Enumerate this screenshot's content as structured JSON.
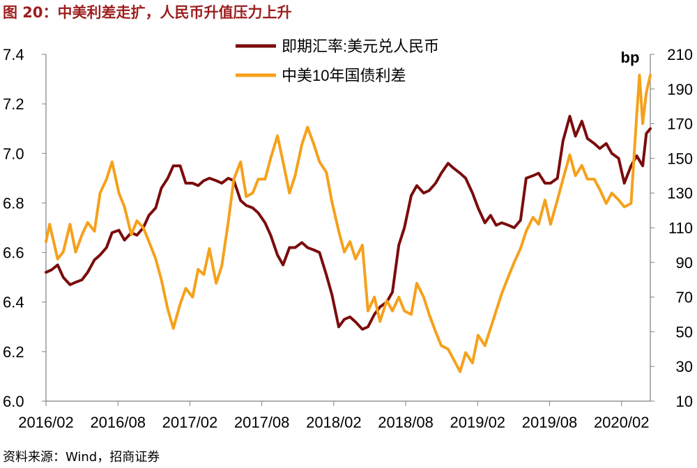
{
  "figure": {
    "title": "图 20：中美利差走扩，人民币升值压力上升",
    "source": "资料来源：Wind，招商证券"
  },
  "chart_data": {
    "type": "line",
    "x_ticks": [
      "2016/02",
      "2016/08",
      "2017/02",
      "2017/08",
      "2018/02",
      "2018/08",
      "2019/02",
      "2019/08",
      "2020/02"
    ],
    "x_range": [
      "2016-02-01",
      "2020-03-20"
    ],
    "y_left": {
      "min": 6.0,
      "max": 7.4,
      "ticks": [
        "6.0",
        "6.2",
        "6.4",
        "6.6",
        "6.8",
        "7.0",
        "7.2",
        "7.4"
      ]
    },
    "y_right": {
      "min": 10,
      "max": 210,
      "unit": "bp",
      "ticks": [
        "10",
        "30",
        "50",
        "70",
        "90",
        "110",
        "130",
        "150",
        "170",
        "190",
        "210"
      ]
    },
    "legend_position": "top-center",
    "grid": false,
    "series": [
      {
        "name": "即期汇率:美元兑人民币",
        "axis": "left",
        "color": "#7b0c0c",
        "points": [
          [
            "2016-02-01",
            6.52
          ],
          [
            "2016-02-15",
            6.53
          ],
          [
            "2016-03-01",
            6.55
          ],
          [
            "2016-03-15",
            6.5
          ],
          [
            "2016-04-01",
            6.47
          ],
          [
            "2016-04-15",
            6.48
          ],
          [
            "2016-05-01",
            6.49
          ],
          [
            "2016-05-15",
            6.52
          ],
          [
            "2016-06-01",
            6.57
          ],
          [
            "2016-06-15",
            6.59
          ],
          [
            "2016-07-01",
            6.62
          ],
          [
            "2016-07-15",
            6.68
          ],
          [
            "2016-08-01",
            6.69
          ],
          [
            "2016-08-15",
            6.65
          ],
          [
            "2016-09-01",
            6.68
          ],
          [
            "2016-09-15",
            6.67
          ],
          [
            "2016-10-01",
            6.7
          ],
          [
            "2016-10-15",
            6.75
          ],
          [
            "2016-11-01",
            6.78
          ],
          [
            "2016-11-15",
            6.86
          ],
          [
            "2016-12-01",
            6.9
          ],
          [
            "2016-12-15",
            6.95
          ],
          [
            "2017-01-01",
            6.95
          ],
          [
            "2017-01-15",
            6.88
          ],
          [
            "2017-02-01",
            6.88
          ],
          [
            "2017-02-15",
            6.87
          ],
          [
            "2017-03-01",
            6.89
          ],
          [
            "2017-03-15",
            6.9
          ],
          [
            "2017-04-01",
            6.89
          ],
          [
            "2017-04-15",
            6.88
          ],
          [
            "2017-05-01",
            6.9
          ],
          [
            "2017-05-15",
            6.89
          ],
          [
            "2017-06-01",
            6.81
          ],
          [
            "2017-06-15",
            6.79
          ],
          [
            "2017-07-01",
            6.78
          ],
          [
            "2017-07-15",
            6.76
          ],
          [
            "2017-08-01",
            6.72
          ],
          [
            "2017-08-15",
            6.67
          ],
          [
            "2017-09-01",
            6.59
          ],
          [
            "2017-09-15",
            6.55
          ],
          [
            "2017-10-01",
            6.62
          ],
          [
            "2017-10-15",
            6.62
          ],
          [
            "2017-11-01",
            6.64
          ],
          [
            "2017-11-15",
            6.62
          ],
          [
            "2017-12-01",
            6.61
          ],
          [
            "2017-12-15",
            6.6
          ],
          [
            "2018-01-01",
            6.51
          ],
          [
            "2018-01-15",
            6.43
          ],
          [
            "2018-02-01",
            6.3
          ],
          [
            "2018-02-15",
            6.33
          ],
          [
            "2018-03-01",
            6.34
          ],
          [
            "2018-03-15",
            6.32
          ],
          [
            "2018-04-01",
            6.29
          ],
          [
            "2018-04-15",
            6.3
          ],
          [
            "2018-05-01",
            6.35
          ],
          [
            "2018-05-15",
            6.38
          ],
          [
            "2018-06-01",
            6.4
          ],
          [
            "2018-06-15",
            6.44
          ],
          [
            "2018-07-01",
            6.63
          ],
          [
            "2018-07-15",
            6.7
          ],
          [
            "2018-08-01",
            6.83
          ],
          [
            "2018-08-15",
            6.87
          ],
          [
            "2018-09-01",
            6.84
          ],
          [
            "2018-09-15",
            6.85
          ],
          [
            "2018-10-01",
            6.88
          ],
          [
            "2018-10-15",
            6.92
          ],
          [
            "2018-11-01",
            6.96
          ],
          [
            "2018-11-15",
            6.94
          ],
          [
            "2018-12-01",
            6.92
          ],
          [
            "2018-12-15",
            6.9
          ],
          [
            "2019-01-01",
            6.84
          ],
          [
            "2019-01-15",
            6.78
          ],
          [
            "2019-02-01",
            6.72
          ],
          [
            "2019-02-15",
            6.75
          ],
          [
            "2019-03-01",
            6.71
          ],
          [
            "2019-03-15",
            6.72
          ],
          [
            "2019-04-01",
            6.71
          ],
          [
            "2019-04-15",
            6.7
          ],
          [
            "2019-05-01",
            6.73
          ],
          [
            "2019-05-15",
            6.9
          ],
          [
            "2019-06-01",
            6.91
          ],
          [
            "2019-06-15",
            6.92
          ],
          [
            "2019-07-01",
            6.88
          ],
          [
            "2019-07-15",
            6.88
          ],
          [
            "2019-08-01",
            6.9
          ],
          [
            "2019-08-15",
            7.05
          ],
          [
            "2019-09-01",
            7.15
          ],
          [
            "2019-09-15",
            7.07
          ],
          [
            "2019-10-01",
            7.13
          ],
          [
            "2019-10-15",
            7.06
          ],
          [
            "2019-11-01",
            7.04
          ],
          [
            "2019-11-15",
            7.02
          ],
          [
            "2019-12-01",
            7.04
          ],
          [
            "2019-12-15",
            7.0
          ],
          [
            "2020-01-01",
            6.98
          ],
          [
            "2020-01-15",
            6.88
          ],
          [
            "2020-02-01",
            6.95
          ],
          [
            "2020-02-15",
            6.99
          ],
          [
            "2020-03-01",
            6.95
          ],
          [
            "2020-03-10",
            7.08
          ],
          [
            "2020-03-20",
            7.1
          ]
        ]
      },
      {
        "name": "中美10年国债利差",
        "axis": "right",
        "color": "#f5a11c",
        "points": [
          [
            "2016-02-01",
            102
          ],
          [
            "2016-02-10",
            112
          ],
          [
            "2016-03-01",
            92
          ],
          [
            "2016-03-15",
            96
          ],
          [
            "2016-04-01",
            112
          ],
          [
            "2016-04-15",
            96
          ],
          [
            "2016-05-01",
            106
          ],
          [
            "2016-05-15",
            113
          ],
          [
            "2016-06-01",
            108
          ],
          [
            "2016-06-15",
            130
          ],
          [
            "2016-07-01",
            138
          ],
          [
            "2016-07-15",
            148
          ],
          [
            "2016-08-01",
            130
          ],
          [
            "2016-08-15",
            122
          ],
          [
            "2016-09-01",
            106
          ],
          [
            "2016-09-15",
            114
          ],
          [
            "2016-10-01",
            110
          ],
          [
            "2016-10-15",
            102
          ],
          [
            "2016-11-01",
            92
          ],
          [
            "2016-11-15",
            80
          ],
          [
            "2016-12-01",
            63
          ],
          [
            "2016-12-15",
            52
          ],
          [
            "2017-01-01",
            66
          ],
          [
            "2017-01-15",
            75
          ],
          [
            "2017-02-01",
            70
          ],
          [
            "2017-02-15",
            86
          ],
          [
            "2017-03-01",
            83
          ],
          [
            "2017-03-15",
            98
          ],
          [
            "2017-04-01",
            78
          ],
          [
            "2017-04-15",
            88
          ],
          [
            "2017-05-01",
            113
          ],
          [
            "2017-05-15",
            138
          ],
          [
            "2017-06-01",
            148
          ],
          [
            "2017-06-15",
            128
          ],
          [
            "2017-07-01",
            130
          ],
          [
            "2017-07-15",
            138
          ],
          [
            "2017-08-01",
            138
          ],
          [
            "2017-08-15",
            150
          ],
          [
            "2017-09-01",
            163
          ],
          [
            "2017-09-15",
            148
          ],
          [
            "2017-10-01",
            130
          ],
          [
            "2017-10-15",
            140
          ],
          [
            "2017-11-01",
            158
          ],
          [
            "2017-11-15",
            168
          ],
          [
            "2017-12-01",
            158
          ],
          [
            "2017-12-15",
            148
          ],
          [
            "2018-01-01",
            142
          ],
          [
            "2018-01-15",
            125
          ],
          [
            "2018-02-01",
            108
          ],
          [
            "2018-02-15",
            96
          ],
          [
            "2018-03-01",
            102
          ],
          [
            "2018-03-15",
            92
          ],
          [
            "2018-04-01",
            100
          ],
          [
            "2018-04-15",
            62
          ],
          [
            "2018-05-01",
            70
          ],
          [
            "2018-05-15",
            56
          ],
          [
            "2018-06-01",
            68
          ],
          [
            "2018-06-15",
            62
          ],
          [
            "2018-07-01",
            70
          ],
          [
            "2018-07-15",
            62
          ],
          [
            "2018-08-01",
            60
          ],
          [
            "2018-08-15",
            78
          ],
          [
            "2018-09-01",
            70
          ],
          [
            "2018-09-15",
            60
          ],
          [
            "2018-10-01",
            50
          ],
          [
            "2018-10-15",
            42
          ],
          [
            "2018-11-01",
            40
          ],
          [
            "2018-11-15",
            34
          ],
          [
            "2018-12-01",
            27
          ],
          [
            "2018-12-15",
            38
          ],
          [
            "2019-01-01",
            32
          ],
          [
            "2019-01-15",
            48
          ],
          [
            "2019-02-01",
            42
          ],
          [
            "2019-02-15",
            52
          ],
          [
            "2019-03-01",
            62
          ],
          [
            "2019-03-15",
            72
          ],
          [
            "2019-04-01",
            82
          ],
          [
            "2019-04-15",
            90
          ],
          [
            "2019-05-01",
            98
          ],
          [
            "2019-05-15",
            108
          ],
          [
            "2019-06-01",
            116
          ],
          [
            "2019-06-15",
            112
          ],
          [
            "2019-07-01",
            126
          ],
          [
            "2019-07-15",
            112
          ],
          [
            "2019-08-01",
            126
          ],
          [
            "2019-08-15",
            138
          ],
          [
            "2019-09-01",
            152
          ],
          [
            "2019-09-15",
            140
          ],
          [
            "2019-10-01",
            146
          ],
          [
            "2019-10-15",
            138
          ],
          [
            "2019-11-01",
            138
          ],
          [
            "2019-11-15",
            132
          ],
          [
            "2019-12-01",
            124
          ],
          [
            "2019-12-15",
            130
          ],
          [
            "2020-01-01",
            126
          ],
          [
            "2020-01-15",
            122
          ],
          [
            "2020-02-01",
            124
          ],
          [
            "2020-02-15",
            175
          ],
          [
            "2020-02-22",
            198
          ],
          [
            "2020-03-01",
            170
          ],
          [
            "2020-03-10",
            188
          ],
          [
            "2020-03-20",
            198
          ]
        ]
      }
    ]
  }
}
